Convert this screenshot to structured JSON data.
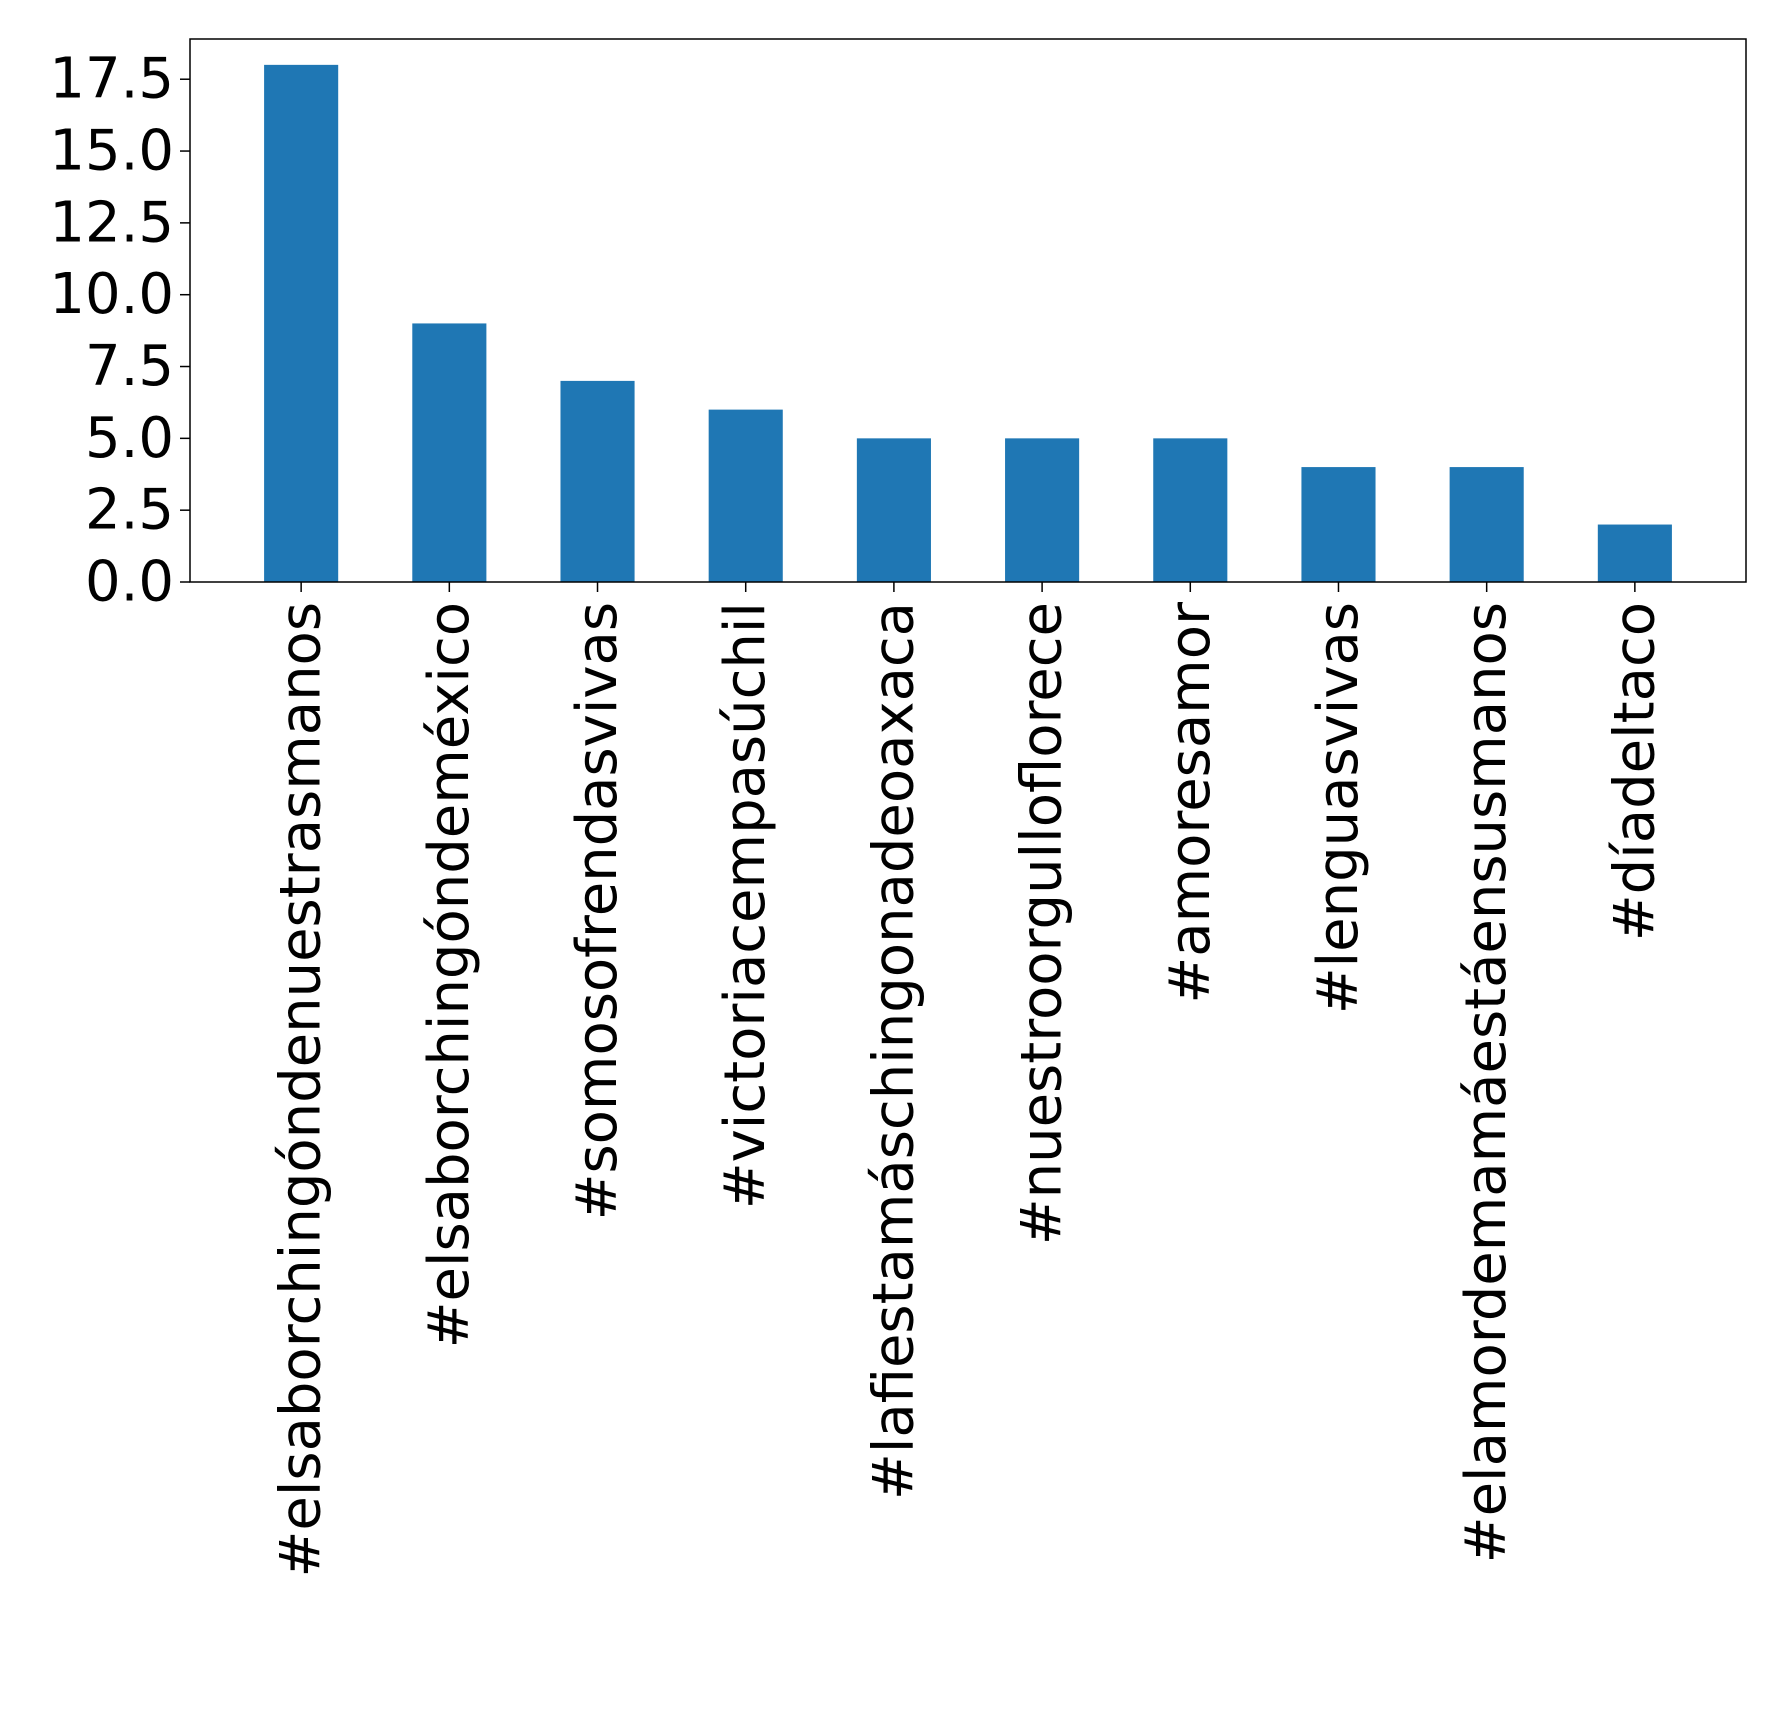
{
  "chart_data": {
    "type": "bar",
    "title": "",
    "xlabel": "",
    "ylabel": "",
    "categories": [
      "#elsaborchingóndenuestrasmanos",
      "#elsaborchingóndeméxico",
      "#somosofrendasvivas",
      "#victoriacempasúchil",
      "#lafiestamáschingonadeoaxaca",
      "#nuestroorgulloflorece",
      "#amoresamor",
      "#lenguasvivas",
      "#elamordemamáestáensusmanos",
      "#díadeltaco"
    ],
    "values": [
      18,
      9,
      7,
      6,
      5,
      5,
      5,
      4,
      4,
      2
    ],
    "ylim": [
      0,
      18.9
    ],
    "yticks": [
      0.0,
      2.5,
      5.0,
      7.5,
      10.0,
      12.5,
      15.0,
      17.5
    ],
    "ytick_labels": [
      "0.0",
      "2.5",
      "5.0",
      "7.5",
      "10.0",
      "12.5",
      "15.0",
      "17.5"
    ],
    "bar_color": "#1f77b4",
    "grid": false,
    "legend": "none"
  }
}
